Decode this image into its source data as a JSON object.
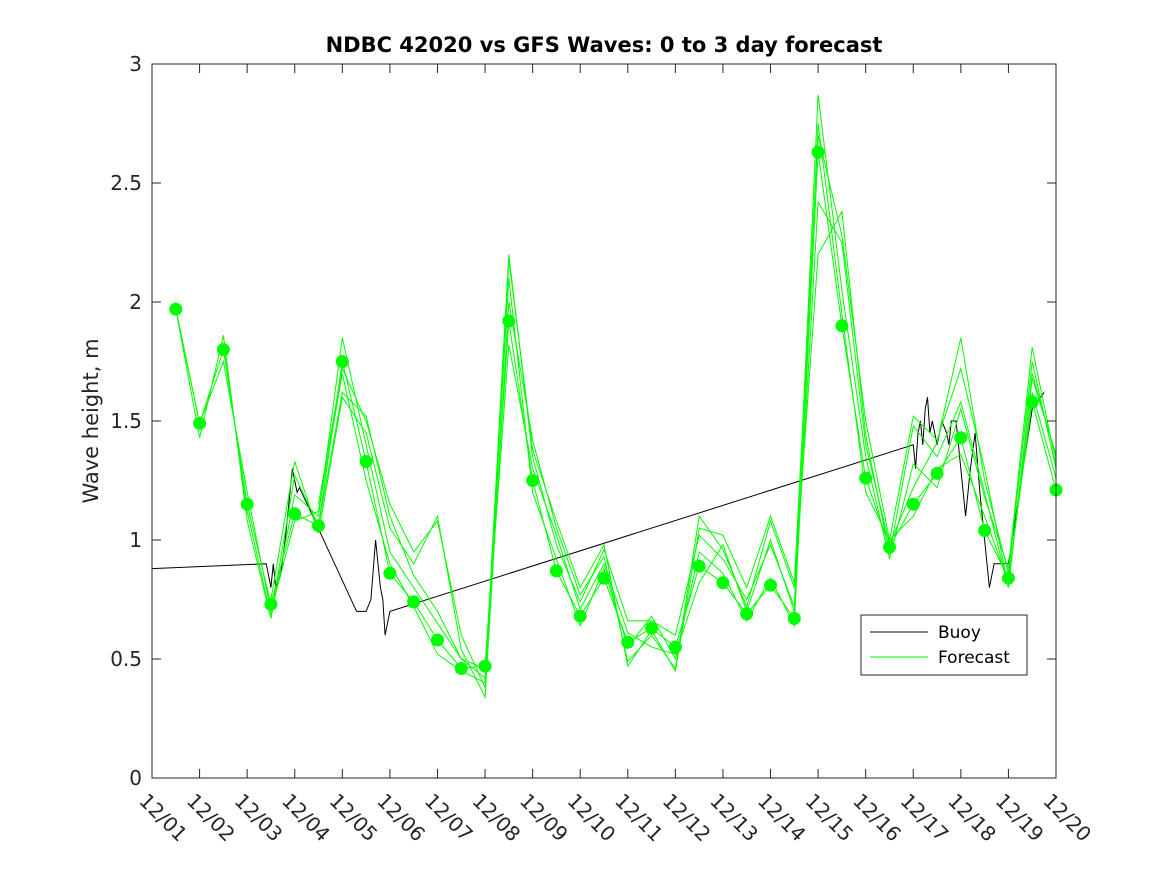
{
  "chart_data": {
    "type": "line",
    "title": "NDBC 42020 vs GFS Waves: 0 to 3 day forecast",
    "xlabel": "",
    "ylabel": "Wave height, m",
    "xlim": [
      0,
      19
    ],
    "ylim": [
      0,
      3
    ],
    "yticks": [
      0,
      0.5,
      1,
      1.5,
      2,
      2.5,
      3
    ],
    "ytick_labels": [
      "0",
      "0.5",
      "1",
      "1.5",
      "2",
      "2.5",
      "3"
    ],
    "xtick_labels": [
      "12/01",
      "12/02",
      "12/03",
      "12/04",
      "12/05",
      "12/06",
      "12/07",
      "12/08",
      "12/09",
      "12/10",
      "12/11",
      "12/12",
      "12/13",
      "12/14",
      "12/15",
      "12/16",
      "12/17",
      "12/18",
      "12/19",
      "12/20"
    ],
    "legend": {
      "position": "bottom-right",
      "entries": [
        "Buoy",
        "Forecast"
      ]
    },
    "colors": {
      "buoy": "#000000",
      "forecast": "#00ff00",
      "axis": "#262626"
    },
    "series": [
      {
        "name": "Buoy",
        "x": [
          0,
          2.4,
          2.45,
          2.5,
          2.55,
          2.6,
          2.7,
          2.8,
          2.85,
          2.9,
          2.95,
          3.0,
          3.05,
          3.1,
          4.3,
          4.5,
          4.6,
          4.7,
          4.75,
          4.8,
          4.85,
          4.9,
          5.0,
          16.0,
          16.05,
          16.1,
          16.15,
          16.2,
          16.25,
          16.3,
          16.35,
          16.4,
          16.5,
          16.6,
          16.7,
          16.75,
          16.8,
          16.9,
          17.0,
          17.1,
          17.2,
          17.3,
          17.4,
          17.5,
          17.6,
          17.7,
          18.0,
          18.5,
          18.75
        ],
        "values": [
          0.88,
          0.9,
          0.85,
          0.8,
          0.9,
          0.8,
          0.85,
          1.0,
          1.1,
          1.2,
          1.3,
          1.25,
          1.2,
          1.22,
          0.7,
          0.7,
          0.75,
          1.0,
          0.9,
          0.8,
          0.75,
          0.6,
          0.7,
          1.4,
          1.3,
          1.45,
          1.5,
          1.4,
          1.55,
          1.6,
          1.45,
          1.5,
          1.4,
          1.5,
          1.45,
          1.4,
          1.5,
          1.5,
          1.3,
          1.1,
          1.3,
          1.45,
          1.2,
          1.0,
          0.8,
          0.9,
          0.9,
          1.55,
          1.62
        ]
      },
      {
        "name": "Forecast",
        "x": [
          0.5,
          1,
          1.5,
          2,
          2.5,
          3,
          3.5,
          4,
          4.5,
          5,
          5.5,
          6,
          6.5,
          7,
          7.5,
          8,
          8.5,
          9,
          9.5,
          10,
          10.5,
          11,
          11.5,
          12,
          12.5,
          13,
          13.5,
          14,
          14.5,
          15,
          15.5,
          16,
          16.5,
          17,
          17.5,
          18,
          18.5,
          19
        ],
        "values": [
          1.97,
          1.49,
          1.8,
          1.15,
          0.73,
          1.11,
          1.06,
          1.75,
          1.33,
          0.86,
          0.74,
          0.58,
          0.46,
          0.47,
          1.92,
          1.25,
          0.87,
          0.68,
          0.84,
          0.57,
          0.63,
          0.55,
          0.89,
          0.82,
          0.69,
          0.81,
          0.67,
          2.63,
          1.9,
          1.26,
          0.97,
          1.15,
          1.28,
          1.43,
          1.04,
          0.84,
          1.58,
          1.21
        ]
      },
      {
        "name": "Forecast",
        "x": [
          0.5,
          1,
          1.5,
          2,
          2.5,
          3,
          3.5,
          4,
          4.5,
          5,
          5.5,
          6,
          6.5,
          7,
          7.5,
          8,
          8.5,
          9,
          9.5,
          10,
          10.5,
          11,
          11.5,
          12,
          12.5,
          13,
          13.5,
          14,
          14.5,
          15,
          15.5,
          16,
          16.5,
          17,
          17.5,
          18,
          18.5,
          19
        ],
        "values": [
          1.97,
          1.43,
          1.86,
          1.08,
          0.67,
          1.19,
          1.1,
          1.85,
          1.4,
          0.95,
          0.8,
          0.65,
          0.5,
          0.42,
          2.2,
          1.35,
          0.98,
          0.74,
          0.96,
          0.66,
          0.66,
          0.6,
          1.02,
          0.92,
          0.75,
          0.98,
          0.72,
          2.87,
          2.05,
          1.35,
          0.92,
          1.32,
          1.22,
          1.55,
          1.18,
          0.88,
          1.81,
          1.32
        ]
      },
      {
        "name": "Forecast",
        "x": [
          0.5,
          1,
          1.5,
          2,
          2.5,
          3,
          3.5,
          4,
          4.5,
          5,
          5.5,
          6,
          6.5,
          7,
          7.5,
          8,
          8.5,
          9,
          9.5,
          10,
          10.5,
          11,
          11.5,
          12,
          12.5,
          13,
          13.5,
          14,
          14.5,
          15,
          15.5,
          16,
          16.5,
          17,
          17.5,
          18,
          18.5,
          19
        ],
        "values": [
          1.97,
          1.49,
          1.75,
          1.2,
          0.7,
          1.08,
          1.12,
          1.7,
          1.25,
          0.9,
          0.72,
          0.52,
          0.45,
          0.4,
          2.1,
          1.2,
          0.92,
          0.64,
          0.88,
          0.55,
          0.68,
          0.5,
          0.95,
          0.86,
          0.66,
          0.84,
          0.64,
          2.75,
          1.95,
          1.2,
          1.0,
          1.1,
          1.3,
          1.36,
          1.1,
          0.82,
          1.62,
          1.26
        ]
      },
      {
        "name": "Forecast",
        "x": [
          1.5,
          2,
          2.5,
          3,
          3.5,
          4,
          4.5,
          5,
          5.5,
          6,
          6.5,
          7,
          7.5,
          8,
          8.5,
          9,
          9.5,
          10,
          10.5,
          11,
          11.5,
          12,
          12.5,
          13,
          13.5,
          14,
          14.5,
          15,
          15.5,
          16,
          16.5,
          17,
          17.5,
          18,
          18.5,
          19
        ],
        "values": [
          1.82,
          1.12,
          0.68,
          1.27,
          1.06,
          1.62,
          1.52,
          1.1,
          0.85,
          0.7,
          0.5,
          0.46,
          1.82,
          1.3,
          1.02,
          0.71,
          0.9,
          0.61,
          0.55,
          0.52,
          0.82,
          0.98,
          0.7,
          1.0,
          0.7,
          2.42,
          2.25,
          1.4,
          0.98,
          1.22,
          1.41,
          1.85,
          1.25,
          0.86,
          1.75,
          1.3
        ]
      },
      {
        "name": "Forecast",
        "x": [
          2.5,
          3,
          3.5,
          4,
          4.5,
          5,
          5.5,
          6,
          6.5,
          7,
          7.5,
          8,
          8.5,
          9,
          9.5,
          10,
          10.5,
          11,
          11.5,
          12,
          12.5,
          13,
          13.5,
          14,
          14.5,
          15,
          15.5,
          16,
          16.5,
          17,
          17.5,
          18,
          18.5,
          19
        ],
        "values": [
          0.75,
          1.33,
          1.03,
          1.6,
          1.45,
          1.05,
          0.9,
          1.1,
          0.54,
          0.34,
          2.0,
          1.42,
          1.05,
          0.77,
          0.93,
          0.49,
          0.6,
          0.46,
          1.1,
          0.96,
          0.72,
          1.08,
          0.8,
          2.2,
          2.38,
          1.44,
          0.94,
          1.48,
          1.35,
          1.58,
          1.2,
          0.8,
          1.68,
          1.36
        ]
      },
      {
        "name": "Forecast",
        "x": [
          3.5,
          4,
          4.5,
          5,
          5.5,
          6,
          6.5,
          7,
          7.5,
          8,
          8.5,
          9,
          9.5,
          10,
          10.5,
          11,
          11.5,
          12,
          12.5,
          13,
          13.5,
          14,
          14.5,
          15,
          15.5,
          16,
          16.5,
          17,
          17.5,
          18,
          18.5,
          19
        ],
        "values": [
          1.15,
          1.72,
          1.5,
          1.15,
          0.95,
          1.08,
          0.6,
          0.38,
          2.18,
          1.38,
          1.08,
          0.8,
          0.98,
          0.47,
          0.62,
          0.45,
          1.05,
          1.02,
          0.8,
          1.1,
          0.82,
          2.7,
          2.28,
          1.5,
          1.0,
          1.52,
          1.42,
          1.72,
          1.3,
          0.8,
          1.7,
          1.35
        ]
      }
    ]
  }
}
